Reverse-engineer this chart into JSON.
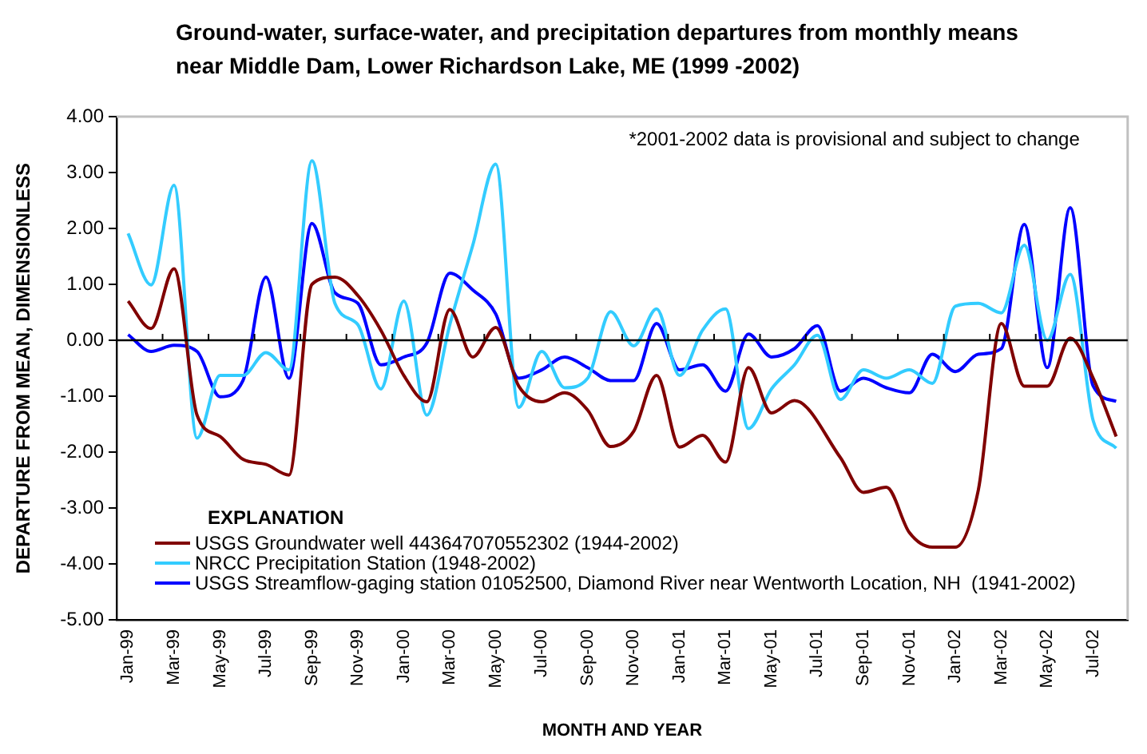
{
  "chart_data": {
    "type": "line",
    "title": "Ground-water, surface-water, and precipitation departures from monthly means near Middle Dam, Lower Richardson Lake, ME (1999 -2002)",
    "xlabel": "MONTH AND YEAR",
    "ylabel": "DEPARTURE FROM MEAN, DIMENSIONLESS",
    "legend_title": "EXPLANATION",
    "annotations": [
      "*2001-2002 data is provisional and subject to change"
    ],
    "categories": [
      "Jan-99",
      null,
      "Mar-99",
      null,
      "May-99",
      null,
      "Jul-99",
      null,
      "Sep-99",
      null,
      "Nov-99",
      null,
      "Jan-00",
      null,
      "Mar-00",
      null,
      "May-00",
      null,
      "Jul-00",
      null,
      "Sep-00",
      null,
      "Nov-00",
      null,
      "Jan-01",
      null,
      "Mar-01",
      null,
      "May-01",
      null,
      "Jul-01",
      null,
      "Sep-01",
      null,
      "Nov-01",
      null,
      "Jan-02",
      null,
      "Mar-02",
      null,
      "May-02",
      null,
      "Jul-02",
      null
    ],
    "series": [
      {
        "name": "USGS Groundwater well 443647070552302 (1944-2002)",
        "color": "#800000",
        "values": [
          0.7,
          0.21,
          1.28,
          -1.34,
          -1.72,
          -2.13,
          -2.22,
          -2.41,
          1.0,
          1.13,
          0.8,
          0.18,
          -0.63,
          -1.1,
          0.55,
          -0.3,
          0.23,
          -0.82,
          -1.1,
          -0.94,
          -1.25,
          -1.9,
          -1.63,
          -0.63,
          -1.91,
          -1.7,
          -2.18,
          -0.49,
          -1.3,
          -1.08,
          null,
          -2.1,
          -2.72,
          -2.63,
          -3.44,
          -3.7,
          -3.7,
          -2.68,
          0.3,
          -0.82,
          -0.82,
          0.04,
          -0.68,
          -1.72
        ]
      },
      {
        "name": "NRCC Precipitation Station (1948-2002)",
        "color": "#33ccff",
        "values": [
          1.91,
          0.99,
          2.77,
          -1.75,
          -0.63,
          -0.63,
          -0.22,
          -0.53,
          3.21,
          0.66,
          0.28,
          -0.87,
          0.7,
          -1.34,
          0.28,
          1.7,
          3.15,
          -1.2,
          -0.2,
          -0.85,
          -0.68,
          0.51,
          -0.1,
          0.56,
          -0.63,
          0.18,
          0.56,
          -1.58,
          -0.87,
          -0.44,
          0.09,
          -1.06,
          -0.53,
          -0.68,
          -0.53,
          -0.77,
          0.61,
          0.66,
          0.49,
          1.7,
          0.0,
          1.18,
          -1.44,
          -1.93
        ]
      },
      {
        "name": "USGS Streamflow-gaging station 01052500, Diamond River near Wentworth Location, NH  (1941-2002)",
        "color": "#0000ff",
        "values": [
          0.1,
          -0.2,
          -0.09,
          -0.2,
          -1.01,
          -0.72,
          1.13,
          -0.68,
          2.09,
          0.85,
          0.66,
          -0.44,
          -0.3,
          -0.05,
          1.2,
          0.9,
          0.47,
          -0.68,
          -0.53,
          -0.3,
          -0.49,
          -0.72,
          -0.72,
          0.3,
          -0.53,
          -0.44,
          -0.91,
          0.11,
          -0.3,
          -0.15,
          0.26,
          -0.91,
          -0.68,
          -0.85,
          -0.94,
          -0.25,
          -0.56,
          -0.25,
          -0.15,
          2.07,
          -0.49,
          2.37,
          -0.82,
          -1.09
        ]
      }
    ],
    "ylim": [
      -5,
      4
    ],
    "yticks": [
      {
        "value": 4,
        "label": "4.00"
      },
      {
        "value": 3,
        "label": "3.00"
      },
      {
        "value": 2,
        "label": "2.00"
      },
      {
        "value": 1,
        "label": "1.00"
      },
      {
        "value": 0,
        "label": "0.00"
      },
      {
        "value": -1,
        "label": "-1.00"
      },
      {
        "value": -2,
        "label": "-2.00"
      },
      {
        "value": -3,
        "label": "-3.00"
      },
      {
        "value": -4,
        "label": "-4.00"
      },
      {
        "value": -5,
        "label": "-5.00"
      }
    ],
    "ref_lines": [
      {
        "axis": "y",
        "value": 0,
        "color": "#000000"
      }
    ],
    "legend": "bottom left"
  }
}
